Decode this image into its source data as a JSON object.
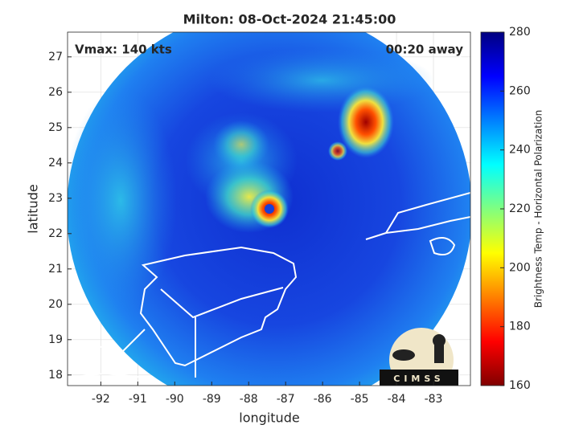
{
  "chart_data": {
    "type": "heatmap",
    "title": "Milton: 08-Oct-2024 21:45:00",
    "xlabel": "longitude",
    "ylabel": "latitude",
    "annotations": [
      "Vmax: 140 kts",
      "00:20 away"
    ],
    "xlim": [
      -92.9,
      -82.0
    ],
    "xticks": [
      -92,
      -91,
      -90,
      -89,
      -88,
      -87,
      -86,
      -85,
      -84,
      -83
    ],
    "ylim": [
      17.7,
      27.7
    ],
    "yticks": [
      18,
      19,
      20,
      21,
      22,
      23,
      24,
      25,
      26,
      27
    ],
    "grid": true,
    "colorbar": {
      "label": "Brightness Temp - Horizontal Polarization",
      "lim": [
        160,
        280
      ],
      "ticks": [
        160,
        180,
        200,
        220,
        240,
        260,
        280
      ],
      "colormap": [
        "#800000",
        "#ff0000",
        "#ff8000",
        "#ffff00",
        "#80ff80",
        "#00ffff",
        "#0080ff",
        "#0000ff",
        "#000080"
      ]
    },
    "logo": "CIMSS"
  }
}
